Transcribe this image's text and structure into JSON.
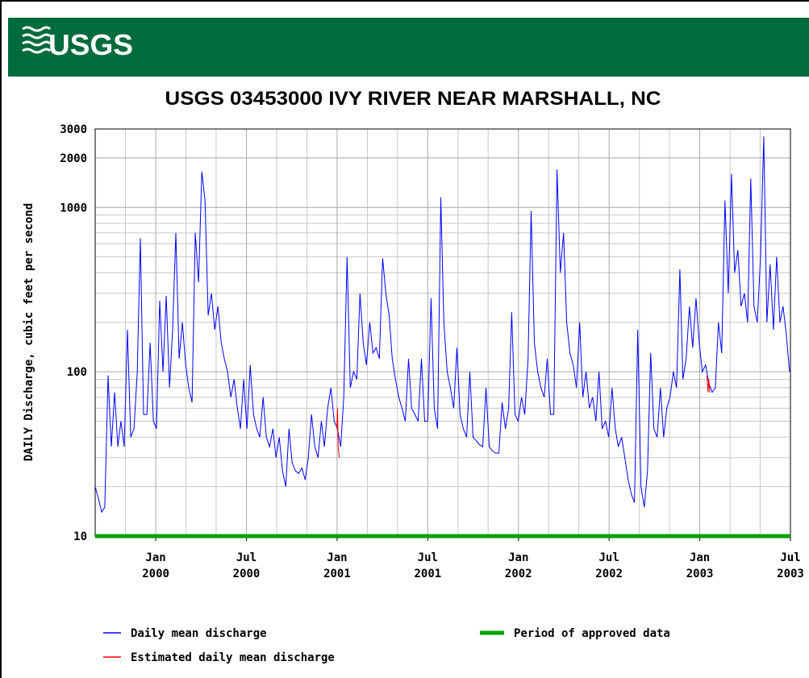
{
  "header": {
    "logo": "USGS"
  },
  "chart_data": {
    "type": "line",
    "title": "USGS 03453000 IVY RIVER NEAR MARSHALL, NC",
    "y_label": "DAILY Discharge, cubic feet per second",
    "log_y": true,
    "grid": true,
    "xlim": [
      1999.666,
      2003.5
    ],
    "ylim": [
      10,
      3000
    ],
    "xticks": [
      {
        "value": 2000,
        "label": "Jan 2000"
      },
      {
        "value": 2000.5,
        "label": "Jul 2000"
      },
      {
        "value": 2001,
        "label": "Jan 2001"
      },
      {
        "value": 2001.5,
        "label": "Jul 2001"
      },
      {
        "value": 2002,
        "label": "Jan 2002"
      },
      {
        "value": 2002.5,
        "label": "Jul 2002"
      },
      {
        "value": 2003,
        "label": "Jan 2003"
      },
      {
        "value": 2003.5,
        "label": "Jul 2003"
      }
    ],
    "xminorticks": [
      1999.833,
      2000.167,
      2000.333,
      2000.667,
      2000.833,
      2001.167,
      2001.333,
      2001.667,
      2001.833,
      2002.167,
      2002.333,
      2002.667,
      2002.833,
      2003.167,
      2003.333
    ],
    "yticks": [
      10,
      100,
      1000,
      2000,
      3000
    ],
    "yminorticks": [
      20,
      30,
      40,
      50,
      60,
      70,
      80,
      90,
      200,
      300,
      400,
      500,
      600,
      700,
      800,
      900
    ],
    "series": [
      {
        "name": "Daily mean discharge",
        "color": "#0000ff",
        "x": [
          1999.666,
          1999.684,
          1999.702,
          1999.719,
          1999.737,
          1999.755,
          1999.773,
          1999.791,
          1999.808,
          1999.826,
          1999.844,
          1999.862,
          1999.88,
          1999.898,
          1999.915,
          1999.933,
          1999.951,
          1999.969,
          1999.987,
          2000.004,
          2000.022,
          2000.04,
          2000.058,
          2000.076,
          2000.093,
          2000.111,
          2000.129,
          2000.147,
          2000.165,
          2000.182,
          2000.2,
          2000.218,
          2000.236,
          2000.254,
          2000.272,
          2000.289,
          2000.307,
          2000.325,
          2000.343,
          2000.361,
          2000.378,
          2000.396,
          2000.414,
          2000.432,
          2000.45,
          2000.467,
          2000.485,
          2000.503,
          2000.521,
          2000.539,
          2000.557,
          2000.574,
          2000.592,
          2000.61,
          2000.628,
          2000.646,
          2000.663,
          2000.681,
          2000.699,
          2000.717,
          2000.735,
          2000.752,
          2000.77,
          2000.788,
          2000.806,
          2000.824,
          2000.841,
          2000.859,
          2000.877,
          2000.895,
          2000.913,
          2000.93,
          2000.948,
          2000.966,
          2000.984,
          2001.002,
          2001.02,
          2001.037,
          2001.055,
          2001.073,
          2001.091,
          2001.109,
          2001.126,
          2001.144,
          2001.162,
          2001.18,
          2001.198,
          2001.215,
          2001.233,
          2001.251,
          2001.269,
          2001.287,
          2001.304,
          2001.322,
          2001.34,
          2001.358,
          2001.376,
          2001.394,
          2001.411,
          2001.429,
          2001.447,
          2001.465,
          2001.483,
          2001.5,
          2001.518,
          2001.536,
          2001.554,
          2001.572,
          2001.589,
          2001.607,
          2001.625,
          2001.643,
          2001.661,
          2001.678,
          2001.696,
          2001.714,
          2001.732,
          2001.75,
          2001.768,
          2001.785,
          2001.803,
          2001.821,
          2001.839,
          2001.857,
          2001.874,
          2001.892,
          2001.91,
          2001.928,
          2001.946,
          2001.963,
          2001.981,
          2001.999,
          2002.017,
          2002.035,
          2002.053,
          2002.07,
          2002.088,
          2002.106,
          2002.124,
          2002.142,
          2002.159,
          2002.177,
          2002.195,
          2002.213,
          2002.231,
          2002.249,
          2002.266,
          2002.284,
          2002.302,
          2002.32,
          2002.338,
          2002.355,
          2002.373,
          2002.391,
          2002.409,
          2002.427,
          2002.444,
          2002.462,
          2002.48,
          2002.498,
          2002.516,
          2002.534,
          2002.551,
          2002.569,
          2002.587,
          2002.605,
          2002.623,
          2002.64,
          2002.658,
          2002.676,
          2002.694,
          2002.712,
          2002.729,
          2002.747,
          2002.765,
          2002.783,
          2002.801,
          2002.818,
          2002.836,
          2002.854,
          2002.872,
          2002.89,
          2002.907,
          2002.925,
          2002.943,
          2002.961,
          2002.979,
          2002.997,
          2003.014,
          2003.032,
          2003.05,
          2003.068,
          2003.086,
          2003.103,
          2003.121,
          2003.139,
          2003.157,
          2003.175,
          2003.192,
          2003.21,
          2003.228,
          2003.246,
          2003.264,
          2003.281,
          2003.299,
          2003.317,
          2003.335,
          2003.353,
          2003.37,
          2003.388,
          2003.406,
          2003.424,
          2003.442,
          2003.459,
          2003.477,
          2003.495
        ],
        "values": [
          20,
          17,
          14,
          15,
          95,
          35,
          75,
          35,
          50,
          35,
          180,
          40,
          45,
          100,
          650,
          55,
          55,
          150,
          50,
          45,
          270,
          100,
          290,
          80,
          180,
          700,
          120,
          200,
          110,
          80,
          65,
          700,
          350,
          1650,
          1100,
          220,
          300,
          180,
          250,
          150,
          120,
          100,
          70,
          90,
          60,
          45,
          90,
          45,
          110,
          55,
          45,
          40,
          70,
          40,
          35,
          45,
          30,
          40,
          25,
          20,
          45,
          28,
          25,
          24,
          26,
          22,
          30,
          55,
          35,
          30,
          50,
          35,
          60,
          80,
          50,
          45,
          35,
          70,
          500,
          80,
          100,
          90,
          300,
          150,
          110,
          200,
          130,
          140,
          120,
          490,
          300,
          220,
          120,
          90,
          70,
          60,
          50,
          120,
          60,
          55,
          50,
          120,
          50,
          50,
          280,
          60,
          45,
          1150,
          200,
          100,
          80,
          60,
          140,
          55,
          45,
          40,
          100,
          40,
          38,
          36,
          35,
          80,
          35,
          33,
          32,
          32,
          65,
          45,
          60,
          230,
          55,
          50,
          70,
          55,
          120,
          950,
          150,
          100,
          80,
          70,
          120,
          55,
          55,
          1700,
          400,
          700,
          200,
          130,
          110,
          80,
          200,
          70,
          100,
          60,
          70,
          50,
          100,
          45,
          50,
          40,
          80,
          45,
          35,
          40,
          30,
          22,
          18,
          16,
          180,
          20,
          15,
          25,
          130,
          45,
          40,
          80,
          40,
          60,
          70,
          100,
          80,
          420,
          90,
          120,
          250,
          140,
          280,
          150,
          100,
          110,
          85,
          75,
          80,
          200,
          130,
          1100,
          300,
          1600,
          400,
          550,
          250,
          300,
          200,
          1500,
          250,
          200,
          500,
          2700,
          200,
          450,
          180,
          500,
          200,
          250,
          170,
          100
        ]
      },
      {
        "name": "Estimated daily mean discharge",
        "color": "#ff0000",
        "x": [
          2000.998,
          2001.002,
          2001.006,
          2001.012,
          2002.0,
          2003.04,
          2003.045,
          2003.05,
          2003.055
        ],
        "values": [
          45,
          60,
          35,
          30,
          null,
          95,
          75,
          90,
          75
        ]
      },
      {
        "name": "Period of approved data",
        "color": "#00a000",
        "width": 5,
        "x": [
          1999.666,
          2003.5
        ],
        "values": [
          10,
          10
        ]
      }
    ]
  }
}
